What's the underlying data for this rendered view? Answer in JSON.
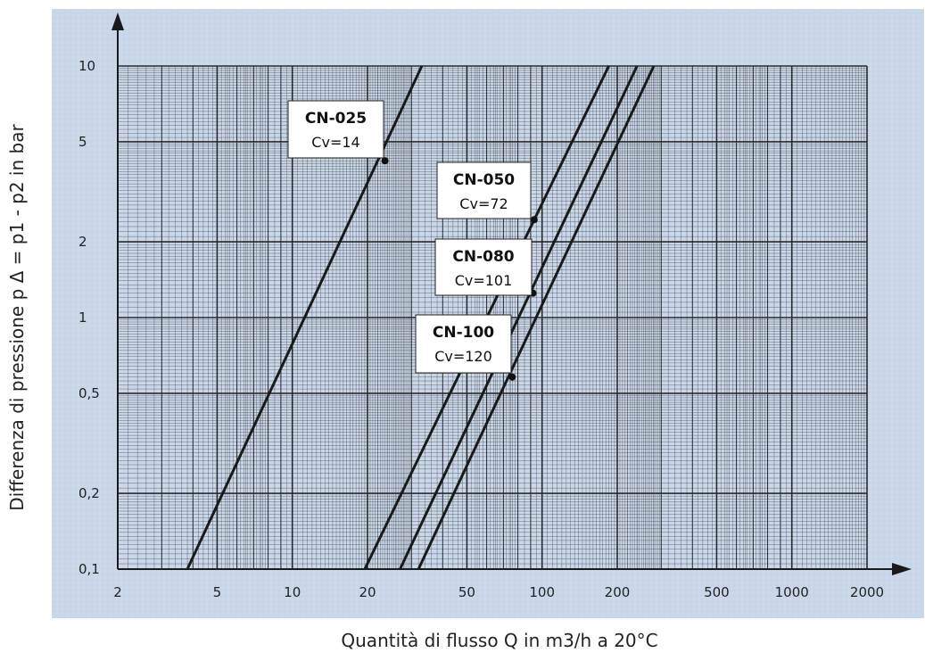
{
  "chart_data": {
    "type": "line",
    "x_scale": "log",
    "y_scale": "log",
    "xlim": [
      2,
      2000
    ],
    "ylim": [
      0.1,
      10
    ],
    "x_ticks": [
      "2",
      "5",
      "10",
      "20",
      "50",
      "100",
      "200",
      "500",
      "1000",
      "2000"
    ],
    "y_ticks": [
      "0,1",
      "0,2",
      "0,5",
      "1",
      "2",
      "5",
      "10"
    ],
    "ylabel": "Differenza di pressione p Δ = p1 - p2 in bar",
    "xlabel": "Quantità di flusso Q in m3/h a 20°C",
    "grid": true,
    "colors": {
      "background": "#c8d6e8",
      "grid": "#2a2a2a",
      "line": "#1a1a1a"
    },
    "series": [
      {
        "name": "CN-025",
        "cv": "Cv=14",
        "x": [
          3.8,
          33
        ],
        "y": [
          0.1,
          10
        ],
        "marker": [
          23.5,
          4.2
        ]
      },
      {
        "name": "CN-050",
        "cv": "Cv=72",
        "x": [
          19.5,
          185
        ],
        "y": [
          0.1,
          10
        ],
        "marker": [
          93,
          2.45
        ]
      },
      {
        "name": "CN-080",
        "cv": "Cv=101",
        "x": [
          27,
          240
        ],
        "y": [
          0.1,
          10
        ],
        "marker": [
          92,
          1.25
        ]
      },
      {
        "name": "CN-100",
        "cv": "Cv=120",
        "x": [
          32,
          280
        ],
        "y": [
          0.1,
          10
        ],
        "marker": [
          76,
          0.58
        ]
      }
    ]
  }
}
